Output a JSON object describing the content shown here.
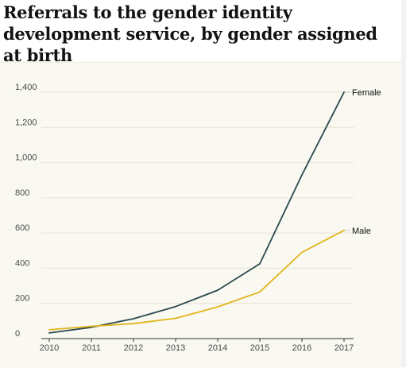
{
  "title": "Referrals to the gender identity development service, by gender assigned at birth",
  "colors": {
    "female": "#2b4a4e",
    "male": "#e2b51c",
    "grid": "#e6e3d6",
    "axis": "#333333",
    "panel": "#f9f8f1"
  },
  "chart_data": {
    "type": "line",
    "title": "Referrals to the gender identity development service, by gender assigned at birth",
    "xlabel": "",
    "ylabel": "",
    "x": [
      2010,
      2011,
      2012,
      2013,
      2014,
      2015,
      2016,
      2017
    ],
    "xtick_labels": [
      "2010",
      "2011",
      "2012",
      "2013",
      "2014",
      "2015",
      "2016",
      "2017"
    ],
    "ylim": [
      0,
      1400
    ],
    "yticks": [
      0,
      200,
      400,
      600,
      800,
      1000,
      1200,
      1400
    ],
    "ytick_labels": [
      "0",
      "200",
      "400",
      "600",
      "800",
      "1,000",
      "1,200",
      "1,400"
    ],
    "grid": true,
    "series": [
      {
        "name": "Female",
        "color": "#2b4a4e",
        "values": [
          32,
          64,
          113,
          182,
          275,
          425,
          930,
          1400
        ]
      },
      {
        "name": "Male",
        "color": "#e2b51c",
        "values": [
          50,
          70,
          85,
          115,
          180,
          265,
          490,
          615
        ]
      }
    ]
  }
}
